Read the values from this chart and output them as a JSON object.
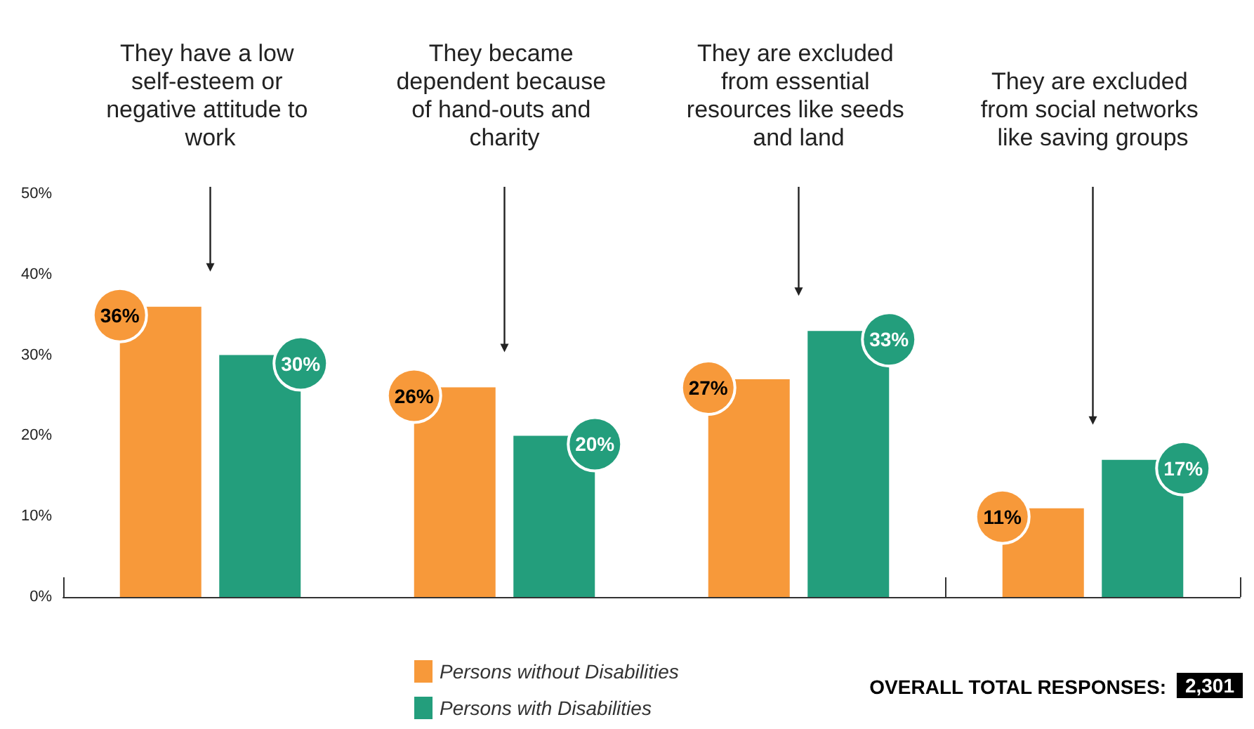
{
  "chart_data": {
    "type": "bar",
    "categories": [
      "They have a low self-esteem or negative attitude to work",
      "They became dependent because of hand-outs and charity",
      "They are excluded from essential resources like seeds and land",
      "They are excluded from social networks like saving groups"
    ],
    "series": [
      {
        "name": "Persons without Disabilities",
        "color": "#f7993a",
        "values": [
          36,
          26,
          27,
          11
        ],
        "value_labels": [
          "36%",
          "26%",
          "27%",
          "11%"
        ]
      },
      {
        "name": "Persons with Disabilities",
        "color": "#239e7c",
        "values": [
          30,
          20,
          33,
          17
        ],
        "value_labels": [
          "30%",
          "20%",
          "33%",
          "17%"
        ]
      }
    ],
    "ylim": [
      0,
      50
    ],
    "yticks": [
      {
        "value": 0,
        "label": "0%"
      },
      {
        "value": 10,
        "label": "10%"
      },
      {
        "value": 20,
        "label": "20%"
      },
      {
        "value": 30,
        "label": "30%"
      },
      {
        "value": 40,
        "label": "40%"
      },
      {
        "value": 50,
        "label": "50%"
      }
    ],
    "grid": false,
    "legend": "bottom",
    "annotations": [
      "OVERALL TOTAL RESPONSES:",
      "2,301"
    ]
  }
}
